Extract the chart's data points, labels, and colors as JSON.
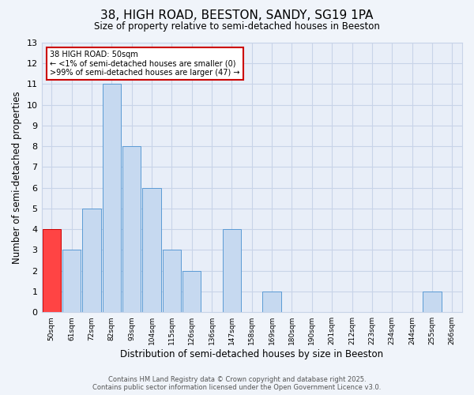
{
  "title": "38, HIGH ROAD, BEESTON, SANDY, SG19 1PA",
  "subtitle": "Size of property relative to semi-detached houses in Beeston",
  "xlabel": "Distribution of semi-detached houses by size in Beeston",
  "ylabel": "Number of semi-detached properties",
  "annotation_title": "38 HIGH ROAD: 50sqm",
  "annotation_line1": "← <1% of semi-detached houses are smaller (0)",
  "annotation_line2": ">99% of semi-detached houses are larger (47) →",
  "bin_labels": [
    "50sqm",
    "61sqm",
    "72sqm",
    "82sqm",
    "93sqm",
    "104sqm",
    "115sqm",
    "126sqm",
    "136sqm",
    "147sqm",
    "158sqm",
    "169sqm",
    "180sqm",
    "190sqm",
    "201sqm",
    "212sqm",
    "223sqm",
    "234sqm",
    "244sqm",
    "255sqm",
    "266sqm"
  ],
  "counts": [
    4,
    3,
    5,
    11,
    8,
    6,
    3,
    2,
    0,
    4,
    0,
    1,
    0,
    0,
    0,
    0,
    0,
    0,
    0,
    1,
    0
  ],
  "highlight_index": 0,
  "bar_color": "#c6d9f0",
  "bar_edge_color": "#5b9bd5",
  "highlight_bar_color": "#ff4444",
  "highlight_bar_edge_color": "#cc0000",
  "annotation_box_edge": "#cc0000",
  "bg_color": "#f0f4fa",
  "plot_bg_color": "#e8eef8",
  "grid_color": "#c8d4e8",
  "ylim": [
    0,
    13
  ],
  "yticks": [
    0,
    1,
    2,
    3,
    4,
    5,
    6,
    7,
    8,
    9,
    10,
    11,
    12,
    13
  ],
  "footer_line1": "Contains HM Land Registry data © Crown copyright and database right 2025.",
  "footer_line2": "Contains public sector information licensed under the Open Government Licence v3.0."
}
